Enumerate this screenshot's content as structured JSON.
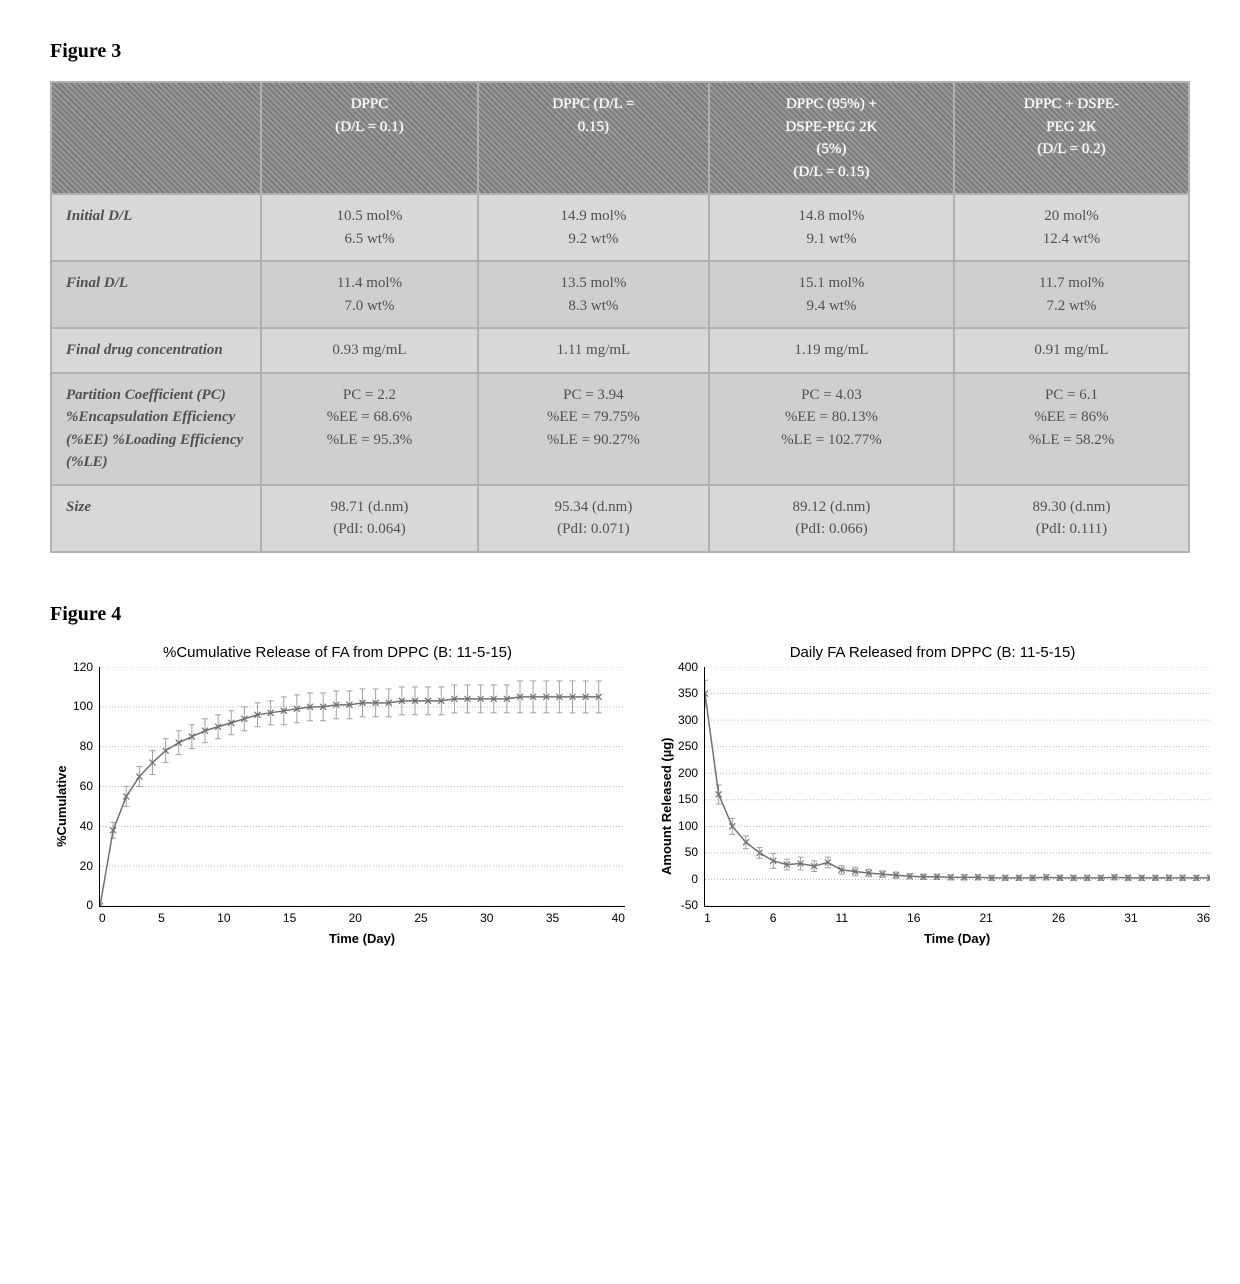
{
  "figure3": {
    "title": "Figure 3",
    "table": {
      "columns": [
        "",
        "DPPC\n(D/L = 0.1)",
        "DPPC (D/L =\n0.15)",
        "DPPC (95%) +\nDSPE-PEG 2K\n(5%)\n(D/L = 0.15)",
        "DPPC + DSPE-\nPEG 2K\n(D/L = 0.2)"
      ],
      "rows": [
        {
          "header": "Initial D/L",
          "cells": [
            "10.5 mol%\n6.5 wt%",
            "14.9 mol%\n9.2 wt%",
            "14.8 mol%\n9.1 wt%",
            "20 mol%\n12.4 wt%"
          ]
        },
        {
          "header": "Final D/L",
          "cells": [
            "11.4 mol%\n7.0 wt%",
            "13.5 mol%\n8.3 wt%",
            "15.1 mol%\n9.4 wt%",
            "11.7 mol%\n7.2 wt%"
          ]
        },
        {
          "header": "Final drug concentration",
          "cells": [
            "0.93 mg/mL",
            "1.11 mg/mL",
            "1.19 mg/mL",
            "0.91 mg/mL"
          ]
        },
        {
          "header": "Partition Coefficient (PC) %Encapsulation Efficiency (%EE) %Loading Efficiency (%LE)",
          "cells": [
            "PC = 2.2\n%EE = 68.6%\n%LE = 95.3%",
            "PC = 3.94\n%EE = 79.75%\n%LE = 90.27%",
            "PC = 4.03\n%EE = 80.13%\n%LE = 102.77%",
            "PC = 6.1\n%EE = 86%\n%LE = 58.2%"
          ]
        },
        {
          "header": "Size",
          "cells": [
            "98.71 (d.nm)\n(PdI: 0.064)",
            "95.34 (d.nm)\n(PdI: 0.071)",
            "89.12 (d.nm)\n(PdI: 0.066)",
            "89.30 (d.nm)\n(PdI: 0.111)"
          ]
        }
      ],
      "header_bg": "#888888",
      "header_text_color": "#ffffff",
      "row_odd_bg": "#d8d8d8",
      "row_even_bg": "#cfcfcf",
      "border_color": "#b0b0b0",
      "cell_text_color": "#505050"
    }
  },
  "figure4": {
    "title": "Figure 4",
    "chartA": {
      "type": "line-with-errorbars",
      "title": "%Cumulative Release of FA from DPPC (B: 11-5-15)",
      "xlabel": "Time (Day)",
      "ylabel": "%Cumulative",
      "xlim": [
        0,
        40
      ],
      "ylim": [
        0,
        120
      ],
      "xticks": [
        0,
        5,
        10,
        15,
        20,
        25,
        30,
        35,
        40
      ],
      "yticks": [
        0,
        20,
        40,
        60,
        80,
        100,
        120
      ],
      "grid_color": "#b8b8b8",
      "line_color": "#707070",
      "errorbar_color": "#a0a0a0",
      "marker": "x",
      "x": [
        0,
        1,
        2,
        3,
        4,
        5,
        6,
        7,
        8,
        9,
        10,
        11,
        12,
        13,
        14,
        15,
        16,
        17,
        18,
        19,
        20,
        21,
        22,
        23,
        24,
        25,
        26,
        27,
        28,
        29,
        30,
        31,
        32,
        33,
        34,
        35,
        36,
        37,
        38
      ],
      "y": [
        0,
        38,
        55,
        65,
        72,
        78,
        82,
        85,
        88,
        90,
        92,
        94,
        96,
        97,
        98,
        99,
        100,
        100,
        101,
        101,
        102,
        102,
        102,
        103,
        103,
        103,
        103,
        104,
        104,
        104,
        104,
        104,
        105,
        105,
        105,
        105,
        105,
        105,
        105
      ],
      "err": [
        0,
        4,
        5,
        5,
        6,
        6,
        6,
        6,
        6,
        6,
        6,
        6,
        6,
        6,
        7,
        7,
        7,
        7,
        7,
        7,
        7,
        7,
        7,
        7,
        7,
        7,
        7,
        7,
        7,
        7,
        7,
        7,
        8,
        8,
        8,
        8,
        8,
        8,
        8
      ]
    },
    "chartB": {
      "type": "line-with-errorbars",
      "title": "Daily FA Released from DPPC (B: 11-5-15)",
      "xlabel": "Time (Day)",
      "ylabel": "Amount Released (µg)",
      "xlim": [
        1,
        38
      ],
      "ylim": [
        -50,
        400
      ],
      "xticks": [
        1,
        6,
        11,
        16,
        21,
        26,
        31,
        36
      ],
      "yticks": [
        -50,
        0,
        50,
        100,
        150,
        200,
        250,
        300,
        350,
        400
      ],
      "grid_color": "#b8b8b8",
      "line_color": "#707070",
      "errorbar_color": "#a0a0a0",
      "marker": "x",
      "x": [
        1,
        2,
        3,
        4,
        5,
        6,
        7,
        8,
        9,
        10,
        11,
        12,
        13,
        14,
        15,
        16,
        17,
        18,
        19,
        20,
        21,
        22,
        23,
        24,
        25,
        26,
        27,
        28,
        29,
        30,
        31,
        32,
        33,
        34,
        35,
        36,
        37,
        38
      ],
      "y": [
        350,
        160,
        100,
        70,
        50,
        35,
        28,
        30,
        25,
        32,
        18,
        15,
        12,
        10,
        8,
        6,
        5,
        5,
        4,
        4,
        4,
        3,
        3,
        3,
        3,
        4,
        3,
        3,
        3,
        3,
        4,
        3,
        3,
        3,
        3,
        3,
        3,
        3
      ],
      "err": [
        25,
        18,
        15,
        12,
        10,
        14,
        10,
        12,
        10,
        10,
        8,
        8,
        7,
        6,
        6,
        5,
        5,
        5,
        5,
        5,
        5,
        5,
        5,
        5,
        5,
        5,
        5,
        5,
        5,
        5,
        5,
        5,
        5,
        5,
        5,
        5,
        5,
        5
      ]
    }
  }
}
